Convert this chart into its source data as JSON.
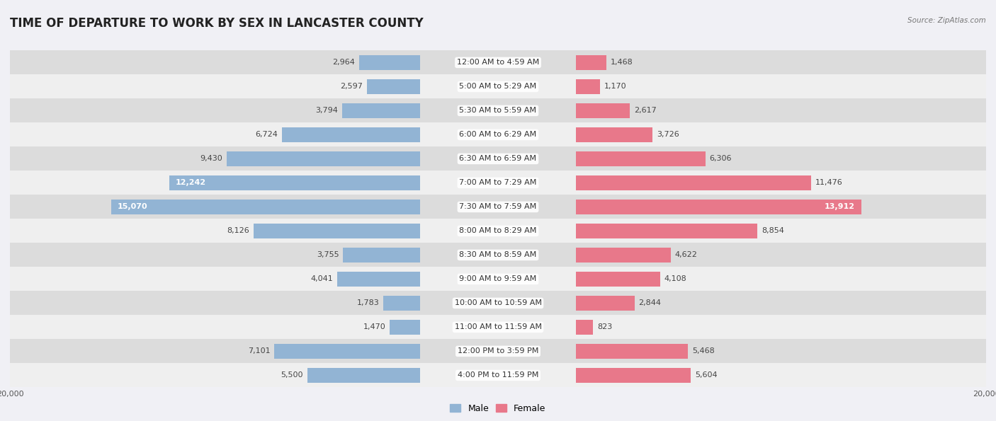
{
  "title": "TIME OF DEPARTURE TO WORK BY SEX IN LANCASTER COUNTY",
  "source": "Source: ZipAtlas.com",
  "categories": [
    "12:00 AM to 4:59 AM",
    "5:00 AM to 5:29 AM",
    "5:30 AM to 5:59 AM",
    "6:00 AM to 6:29 AM",
    "6:30 AM to 6:59 AM",
    "7:00 AM to 7:29 AM",
    "7:30 AM to 7:59 AM",
    "8:00 AM to 8:29 AM",
    "8:30 AM to 8:59 AM",
    "9:00 AM to 9:59 AM",
    "10:00 AM to 10:59 AM",
    "11:00 AM to 11:59 AM",
    "12:00 PM to 3:59 PM",
    "4:00 PM to 11:59 PM"
  ],
  "male_values": [
    2964,
    2597,
    3794,
    6724,
    9430,
    12242,
    15070,
    8126,
    3755,
    4041,
    1783,
    1470,
    7101,
    5500
  ],
  "female_values": [
    1468,
    1170,
    2617,
    3726,
    6306,
    11476,
    13912,
    8854,
    4622,
    4108,
    2844,
    823,
    5468,
    5604
  ],
  "male_color": "#92b4d4",
  "female_color": "#e8788a",
  "male_label": "Male",
  "female_label": "Female",
  "xlim": 20000,
  "background_color": "#f0f0f5",
  "bar_height": 0.62,
  "title_fontsize": 12,
  "label_fontsize": 8,
  "value_fontsize": 8,
  "tick_fontsize": 8,
  "row_colors": [
    "#dcdcdc",
    "#efefef"
  ]
}
